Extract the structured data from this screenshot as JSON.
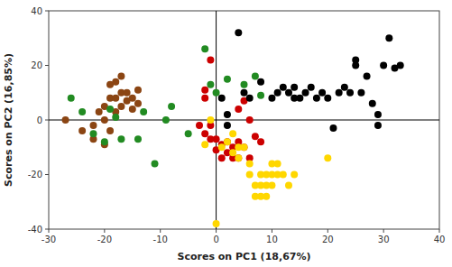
{
  "chart_data": {
    "type": "scatter",
    "xlabel": "Scores on PC1 (18,67%)",
    "ylabel": "Scores on PC2 (16,85%)",
    "xlim": [
      -30,
      40
    ],
    "ylim": [
      -40,
      40
    ],
    "xticks": [
      -30,
      -20,
      -10,
      0,
      10,
      20,
      30,
      40
    ],
    "yticks": [
      -40,
      -20,
      0,
      20,
      40
    ],
    "grid": false,
    "series": [
      {
        "color": "#8B4513",
        "x": [
          -27,
          -24,
          -22,
          -22,
          -21,
          -20,
          -20,
          -20,
          -19,
          -19,
          -19,
          -18,
          -18,
          -18,
          -17,
          -17,
          -17,
          -16,
          -16,
          -15,
          -15,
          -14,
          -14
        ],
        "values": [
          0,
          -4,
          -7,
          -2,
          3,
          -9,
          0,
          5,
          -4,
          8,
          13,
          3,
          8,
          14,
          5,
          10,
          16,
          7,
          10,
          4,
          8,
          6,
          11
        ]
      },
      {
        "color": "#228B22",
        "x": [
          -26,
          -24,
          -22,
          -20,
          -19,
          -18,
          -17,
          -14,
          -13,
          -11,
          -9,
          -8,
          -5,
          -2,
          -1,
          0,
          2,
          5,
          7,
          8
        ],
        "values": [
          8,
          3,
          -5,
          -8,
          4,
          1,
          -7,
          -7,
          3,
          -16,
          0,
          5,
          -5,
          26,
          13,
          10,
          15,
          13,
          16,
          9
        ]
      },
      {
        "color": "#CC0000",
        "x": [
          -1,
          -2,
          -2,
          -3,
          -2,
          -1,
          -1,
          0,
          0,
          1,
          1,
          2,
          2,
          3,
          3,
          4,
          4,
          5,
          4,
          5,
          7,
          6,
          8,
          6
        ],
        "values": [
          22,
          8,
          11,
          -2,
          -5,
          -2,
          -7,
          -7,
          -11,
          -9,
          -14,
          -12,
          -8,
          -14,
          -10,
          -14,
          -8,
          -10,
          4,
          7,
          -6,
          0,
          -8,
          -14
        ]
      },
      {
        "color": "#FFD700",
        "x": [
          -1,
          -2,
          0,
          1,
          2,
          3,
          3,
          4,
          4,
          5,
          6,
          6,
          7,
          7,
          8,
          8,
          8,
          9,
          9,
          9,
          10,
          10,
          11,
          12,
          13,
          14,
          20,
          10,
          11
        ],
        "values": [
          0,
          -9,
          -38,
          -10,
          -8,
          -5,
          -12,
          -14,
          -10,
          -10,
          -16,
          -20,
          -24,
          -28,
          -20,
          -24,
          -28,
          -20,
          -24,
          -28,
          -20,
          -24,
          -16,
          -20,
          -24,
          -20,
          -14,
          -16,
          -20
        ]
      },
      {
        "color": "#000000",
        "x": [
          1,
          2,
          2,
          4,
          5,
          6,
          8,
          10,
          11,
          12,
          13,
          14,
          14,
          15,
          16,
          17,
          18,
          19,
          20,
          21,
          22,
          23,
          24,
          25,
          25,
          26,
          27,
          28,
          29,
          29,
          30,
          31,
          32,
          33
        ],
        "values": [
          8,
          -2,
          2,
          32,
          10,
          8,
          14,
          8,
          10,
          12,
          10,
          8,
          12,
          8,
          10,
          12,
          8,
          10,
          8,
          -3,
          10,
          12,
          10,
          20,
          22,
          10,
          16,
          6,
          -2,
          2,
          20,
          30,
          19,
          20
        ]
      }
    ]
  }
}
